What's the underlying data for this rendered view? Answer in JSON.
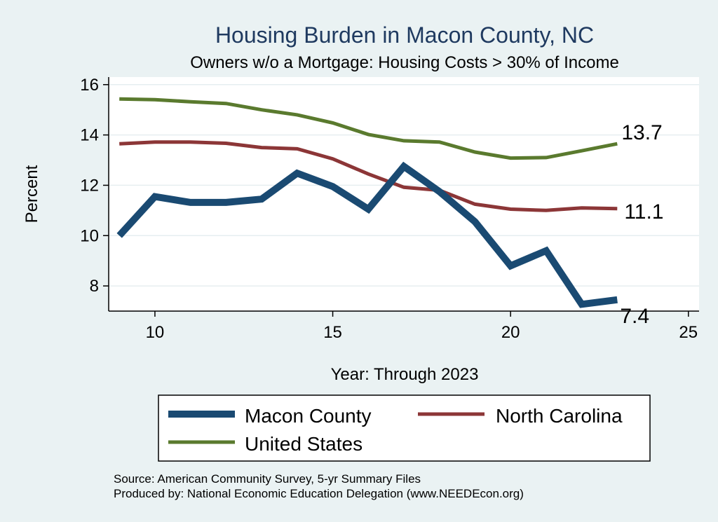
{
  "chart_data": {
    "type": "line",
    "title": "Housing Burden in Macon County, NC",
    "subtitle": "Owners w/o a Mortgage: Housing Costs > 30% of Income",
    "xlabel": "Year: Through 2023",
    "ylabel": "Percent",
    "xlim": [
      8.7,
      25.3
    ],
    "ylim": [
      7.0,
      16.3
    ],
    "xticks": [
      10,
      15,
      20,
      25
    ],
    "yticks": [
      8,
      10,
      12,
      14,
      16
    ],
    "grid": true,
    "series": [
      {
        "name": "Macon County",
        "color": "#1a4a72",
        "x": [
          9,
          10,
          11,
          12,
          13,
          14,
          15,
          16,
          17,
          18,
          19,
          20,
          21,
          22,
          23
        ],
        "values": [
          10.0,
          11.55,
          11.32,
          11.32,
          11.45,
          12.48,
          11.95,
          11.05,
          12.75,
          11.75,
          10.55,
          8.8,
          9.4,
          7.27,
          7.45
        ],
        "end_label": "7.4"
      },
      {
        "name": "North Carolina",
        "color": "#8c3637",
        "x": [
          9,
          10,
          11,
          12,
          13,
          14,
          15,
          16,
          17,
          18,
          19,
          20,
          21,
          22,
          23
        ],
        "values": [
          13.65,
          13.72,
          13.72,
          13.67,
          13.5,
          13.45,
          13.05,
          12.45,
          11.92,
          11.8,
          11.25,
          11.05,
          11.0,
          11.1,
          11.07
        ],
        "end_label": "11.1"
      },
      {
        "name": "United States",
        "color": "#5a7a2e",
        "x": [
          9,
          10,
          11,
          12,
          13,
          14,
          15,
          16,
          17,
          18,
          19,
          20,
          21,
          22,
          23
        ],
        "values": [
          15.43,
          15.4,
          15.32,
          15.25,
          15.0,
          14.8,
          14.48,
          14.02,
          13.77,
          13.72,
          13.32,
          13.08,
          13.1,
          13.37,
          13.65
        ],
        "end_label": "13.7"
      }
    ],
    "legend": {
      "position": "bottom",
      "items": [
        "Macon County",
        "North Carolina",
        "United States"
      ]
    }
  },
  "source": "Source: American Community Survey, 5-yr Summary Files",
  "produced": "Produced by: National Economic Education Delegation (www.NEEDEcon.org)"
}
